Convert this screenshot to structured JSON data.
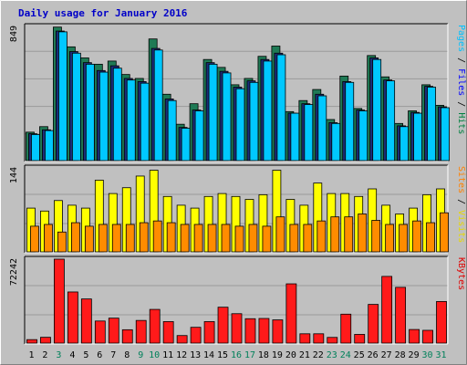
{
  "chart_data": {
    "type": "bar",
    "title": "Daily usage for January 2016",
    "days": [
      "1",
      "2",
      "3",
      "4",
      "5",
      "6",
      "7",
      "8",
      "9",
      "10",
      "11",
      "12",
      "13",
      "14",
      "15",
      "16",
      "17",
      "18",
      "19",
      "20",
      "21",
      "22",
      "23",
      "24",
      "25",
      "26",
      "27",
      "28",
      "29",
      "30",
      "31"
    ],
    "weekend_days": [
      "3",
      "9",
      "10",
      "16",
      "17",
      "23",
      "24",
      "30",
      "31"
    ],
    "panels": [
      {
        "name": "hits-files-pages",
        "max_label": "849",
        "max": 849,
        "legend": [
          {
            "text": "Pages",
            "color": "#00c0ff"
          },
          {
            "text": " / ",
            "color": "#000000"
          },
          {
            "text": "Files",
            "color": "#0000ff"
          },
          {
            "text": " / ",
            "color": "#000000"
          },
          {
            "text": "Hits",
            "color": "#008040"
          }
        ],
        "series": [
          {
            "name": "Hits",
            "color": "#1f7a55",
            "values": [
              180,
              215,
              845,
              720,
              650,
              610,
              630,
              545,
              520,
              770,
              420,
              230,
              360,
              640,
              590,
              480,
              520,
              660,
              725,
              310,
              380,
              450,
              260,
              535,
              330,
              665,
              530,
              235,
              315,
              480,
              350
            ]
          },
          {
            "name": "Files",
            "color": "#1a2e7a",
            "values": [
              170,
              195,
              820,
              690,
              620,
              570,
              600,
              520,
              500,
              710,
              390,
              210,
              320,
              620,
              565,
              465,
              505,
              640,
              680,
              300,
              360,
              420,
              240,
              500,
              320,
              650,
              510,
              220,
              305,
              470,
              340
            ]
          },
          {
            "name": "Pages",
            "color": "#00c8ff",
            "values": [
              165,
              190,
              815,
              680,
              610,
              560,
              585,
              510,
              490,
              700,
              380,
              205,
              315,
              610,
              555,
              455,
              495,
              630,
              670,
              300,
              355,
              410,
              235,
              495,
              315,
              640,
              505,
              215,
              300,
              465,
              335
            ]
          }
        ]
      },
      {
        "name": "visits-sites",
        "max_label": "144",
        "max": 144,
        "legend": [
          {
            "text": "Sites",
            "color": "#ff8000"
          },
          {
            "text": " / ",
            "color": "#000000"
          },
          {
            "text": "Visits",
            "color": "#e8d800"
          }
        ],
        "series": [
          {
            "name": "Visits",
            "color": "#ffff00",
            "values": [
              75,
              70,
              88,
              80,
              75,
              123,
              100,
              110,
              130,
              140,
              95,
              80,
              75,
              95,
              100,
              95,
              90,
              98,
              140,
              90,
              80,
              118,
              100,
              100,
              95,
              108,
              80,
              65,
              75,
              98,
              108
            ]
          },
          {
            "name": "Sites",
            "color": "#ff8c00",
            "values": [
              44,
              47,
              34,
              50,
              44,
              47,
              47,
              47,
              50,
              53,
              50,
              47,
              47,
              47,
              47,
              44,
              47,
              44,
              60,
              47,
              47,
              53,
              60,
              60,
              65,
              54,
              47,
              47,
              53,
              50,
              67
            ]
          }
        ]
      },
      {
        "name": "kbytes",
        "max_label": "72242",
        "max": 72242,
        "legend": [
          {
            "text": "KBytes",
            "color": "#e00000"
          }
        ],
        "series": [
          {
            "name": "KBytes",
            "color": "#ff1a1a",
            "values": [
              3000,
              5000,
              72242,
              44000,
              38000,
              19000,
              21500,
              11500,
              19500,
              29000,
              18500,
              6500,
              13600,
              18500,
              30900,
              25300,
              21000,
              21200,
              20000,
              51000,
              8000,
              8000,
              4900,
              24900,
              7500,
              33300,
              57400,
              48000,
              11700,
              11000,
              35800
            ]
          }
        ]
      }
    ]
  }
}
